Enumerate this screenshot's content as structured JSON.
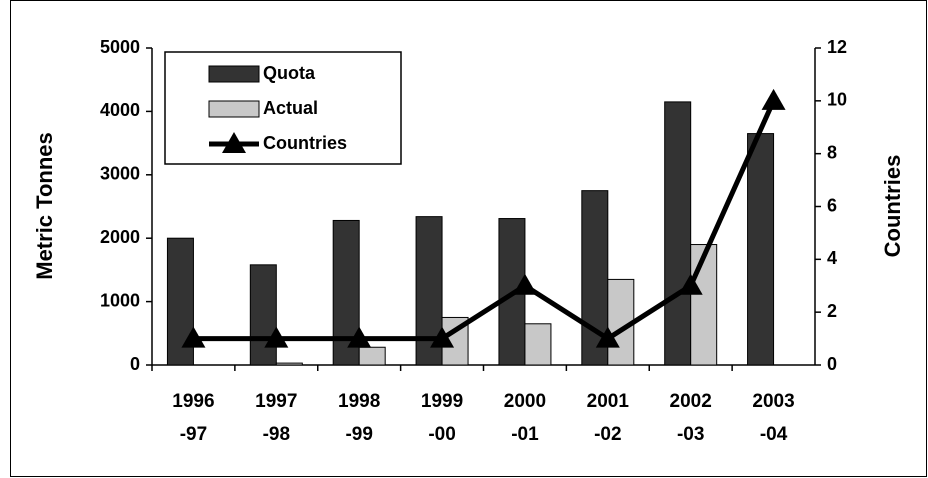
{
  "chart_data": {
    "type": "bar-line",
    "categories": [
      "1996-97",
      "1997-98",
      "1998-99",
      "1999-00",
      "2000-01",
      "2001-02",
      "2002-03",
      "2003-04"
    ],
    "series": [
      {
        "name": "Quota",
        "color": "#333333",
        "type": "bar",
        "values": [
          2000,
          1580,
          2280,
          2340,
          2310,
          2750,
          4150,
          3650
        ]
      },
      {
        "name": "Actual",
        "color": "#c8c8c8",
        "type": "bar",
        "values": [
          0,
          30,
          280,
          750,
          650,
          1350,
          1900,
          0
        ]
      },
      {
        "name": "Countries",
        "color": "#000000",
        "type": "line",
        "axis": "y2",
        "values": [
          1,
          1,
          1,
          1,
          3,
          1,
          3,
          10
        ]
      }
    ],
    "y_label": "Metric Tonnes",
    "y2_label": "Countries",
    "ylim": [
      0,
      5000
    ],
    "yticks": [
      0,
      1000,
      2000,
      3000,
      4000,
      5000
    ],
    "y2lim": [
      0,
      12
    ],
    "y2ticks": [
      0,
      2,
      4,
      6,
      8,
      10,
      12
    ],
    "grid": false,
    "legend": "top-left"
  }
}
